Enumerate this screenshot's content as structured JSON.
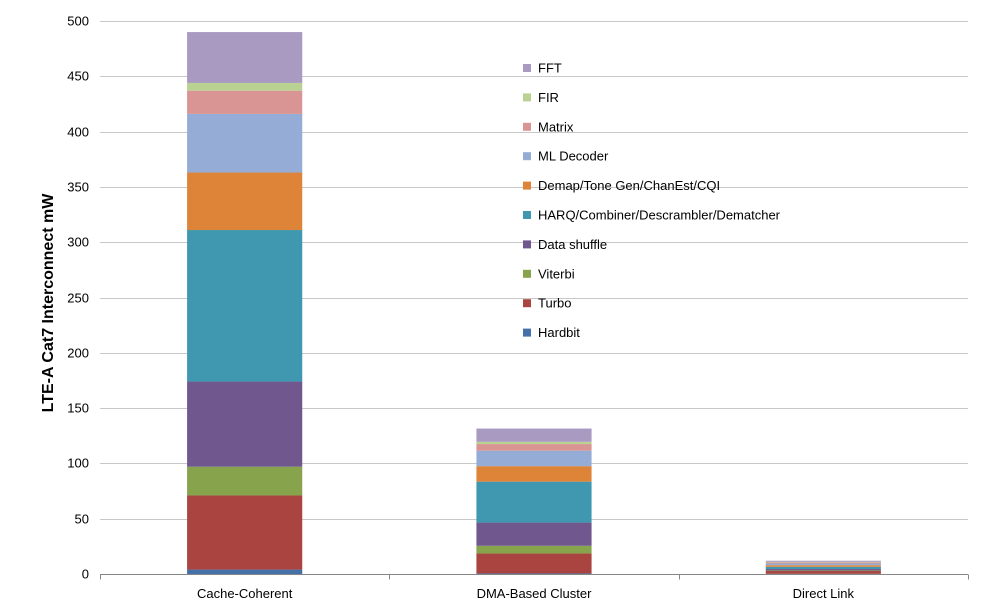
{
  "chart_data": {
    "type": "bar",
    "stacked": true,
    "title": "",
    "xlabel": "",
    "ylabel": "LTE-A Cat7 Interconnect mW",
    "ylim": [
      0,
      500
    ],
    "yticks": [
      0,
      50,
      100,
      150,
      200,
      250,
      300,
      350,
      400,
      450,
      500
    ],
    "grid": true,
    "legend_position": "upper-center",
    "categories": [
      "Cache-Coherent",
      "DMA-Based Cluster",
      "Direct Link"
    ],
    "series": [
      {
        "name": "Hardbit",
        "color": "#4472a8",
        "values": [
          4,
          0.5,
          0.2
        ]
      },
      {
        "name": "Turbo",
        "color": "#a94441",
        "values": [
          67,
          18,
          2.5
        ]
      },
      {
        "name": "Viterbi",
        "color": "#87a34b",
        "values": [
          26,
          7,
          0.5
        ]
      },
      {
        "name": "Data shuffle",
        "color": "#70578e",
        "values": [
          77,
          21,
          1.3
        ]
      },
      {
        "name": "HARQ/Combiner/Descrambler/Dematcher",
        "color": "#3f98b0",
        "values": [
          137,
          37,
          2
        ]
      },
      {
        "name": "Demap/Tone Gen/ChanEst/CQI",
        "color": "#dd8439",
        "values": [
          52,
          14,
          1.5
        ]
      },
      {
        "name": "ML Decoder",
        "color": "#95acd6",
        "values": [
          53,
          14,
          1.5
        ]
      },
      {
        "name": "Matrix",
        "color": "#d99593",
        "values": [
          21,
          6,
          1
        ]
      },
      {
        "name": "FIR",
        "color": "#b9d191",
        "values": [
          7,
          2,
          0.5
        ]
      },
      {
        "name": "FFT",
        "color": "#a99ac2",
        "values": [
          46,
          12,
          1
        ]
      }
    ]
  }
}
